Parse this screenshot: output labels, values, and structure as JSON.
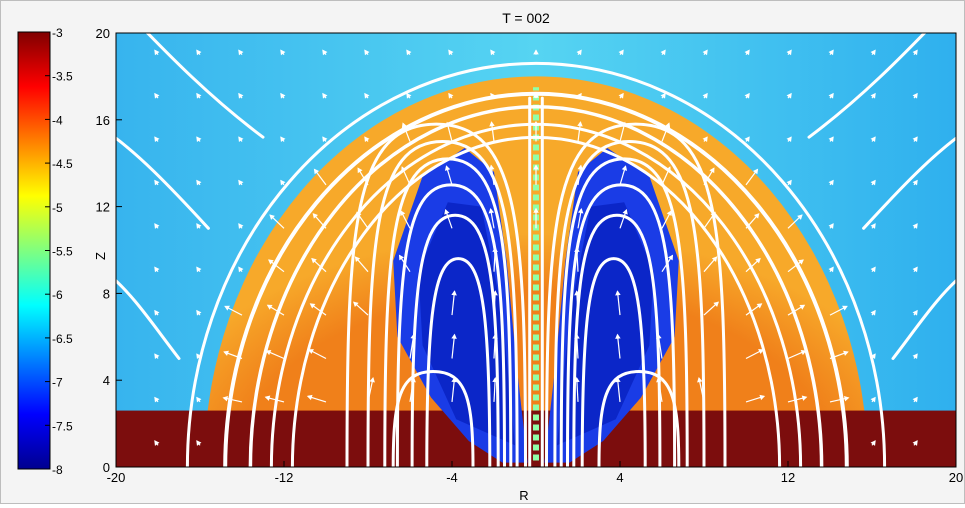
{
  "chart_data": {
    "type": "heatmap",
    "title": "T = 002",
    "xlabel": "R",
    "ylabel": "Z",
    "xlim": [
      -20,
      20
    ],
    "ylim": [
      0,
      20
    ],
    "xticks": [
      "-20",
      "-12",
      "-4",
      "4",
      "12",
      "20"
    ],
    "yticks": [
      "0",
      "4",
      "8",
      "12",
      "16",
      "20"
    ],
    "colorbar": {
      "min": -8,
      "max": -3,
      "ticks": [
        "-3",
        "-3.5",
        "-4",
        "-4.5",
        "-5",
        "-5.5",
        "-6",
        "-6.5",
        "-7",
        "-7.5",
        "-8"
      ]
    },
    "regions": {
      "ambient_value": -6.0,
      "disk_value": -3.2,
      "dome_shell_value": -4.6,
      "cavity_value": -7.6,
      "dome_outer_radius": [
        15.8,
        18.0
      ],
      "dome_inner_radius": [
        11.0,
        14.4
      ],
      "disk_height": 2.6
    },
    "field_lines": "white",
    "velocity_vectors": "white"
  }
}
